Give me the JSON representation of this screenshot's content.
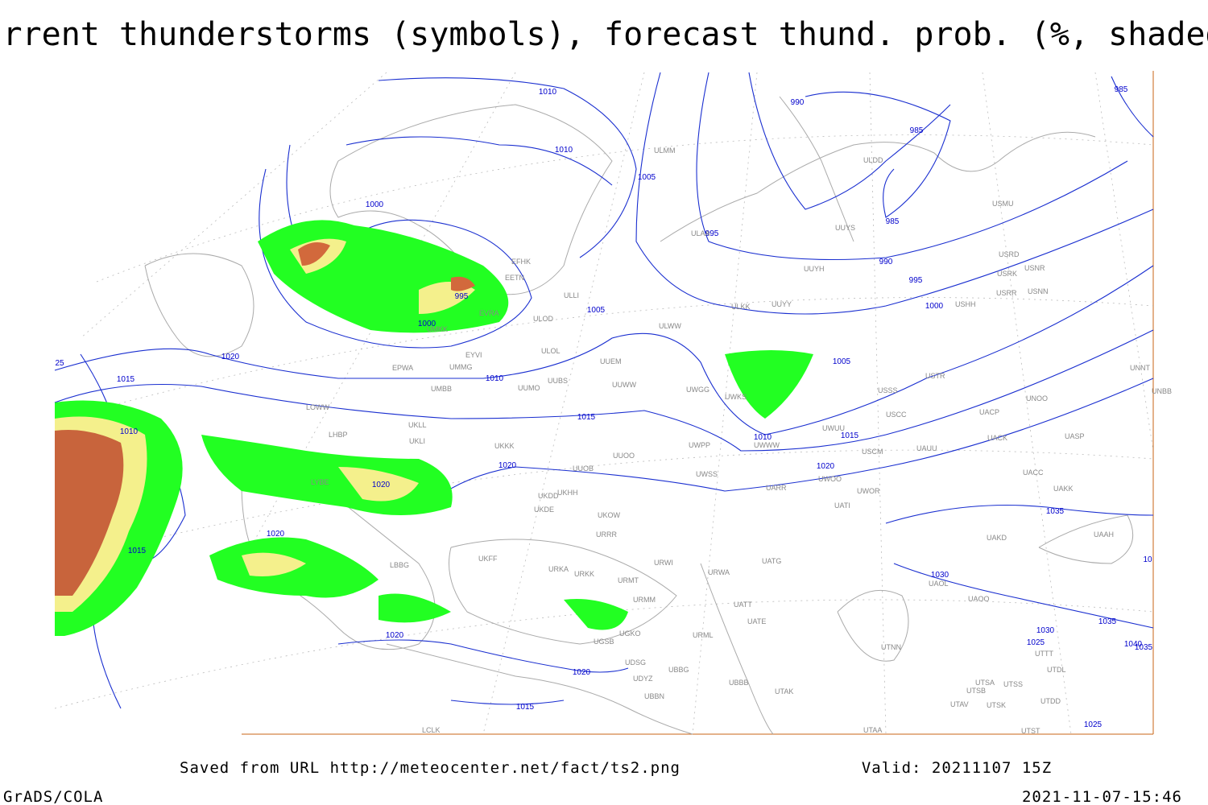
{
  "title": "Current thunderstorms (symbols), forecast thund. prob. (%, shaded)",
  "footer": {
    "saved_from": "Saved from URL http://meteocenter.net/fact/ts2.png",
    "valid": "Valid: 20211107 15Z",
    "credit": "GrADS/COLA",
    "timestamp": "2021-11-07-15:46"
  },
  "isobar_labels": [
    "1010",
    "1010",
    "1005",
    "1000",
    "995",
    "990",
    "985",
    "985",
    "985",
    "990",
    "995",
    "1000",
    "1005",
    "995",
    "1000",
    "1020",
    "1015",
    "1010",
    "1015",
    "1010",
    "1015",
    "1005",
    "1020",
    "1020",
    "1035",
    "1030",
    "1010",
    "1020",
    "1020",
    "1015",
    "1020",
    "1020",
    "1015",
    "1030",
    "1025",
    "1035",
    "1040",
    "1035",
    "1025",
    "25",
    "10"
  ],
  "station_codes": [
    "ULMM",
    "ULDD",
    "USMU",
    "ULAA",
    "UUYS",
    "UUYH",
    "USRD",
    "USRK",
    "USNR",
    "USRR",
    "USNN",
    "USHH",
    "UUYY",
    "ULKK",
    "ULWW",
    "ULOD",
    "ULOL",
    "UUEM",
    "UMMG",
    "EPWA",
    "UMBB",
    "UUBS",
    "UUMO",
    "UUWW",
    "UWGG",
    "UWKS",
    "USSS",
    "USTR",
    "UNOO",
    "UNNT",
    "UNBB",
    "USCC",
    "LOWW",
    "LHBP",
    "UKLL",
    "UKLI",
    "UKKK",
    "UUOO",
    "UWPP",
    "UWWW",
    "UWUU",
    "USCM",
    "UAUU",
    "UACK",
    "UASP",
    "UACP",
    "UWSS",
    "UUOB",
    "UKHH",
    "UKDD",
    "UKDE",
    "UKFF",
    "URKA",
    "URKK",
    "URRR",
    "UKOW",
    "URMT",
    "URWI",
    "URMM",
    "URWA",
    "UATG",
    "UATT",
    "UATE",
    "URML",
    "UTNN",
    "UAOL",
    "UAOO",
    "UAKD",
    "UAAH",
    "UAKK",
    "UACC",
    "UARR",
    "UWOO",
    "UWOR",
    "UATI",
    "UGSB",
    "UGKO",
    "UDSG",
    "UBBG",
    "UDYZ",
    "UBBN",
    "UBBB",
    "UTAK",
    "UTSA",
    "UTSS",
    "UTSB",
    "UTAV",
    "UTSK",
    "UTDD",
    "UTDL",
    "UTTT",
    "UTAA",
    "UTST",
    "LCLK",
    "LBBG",
    "LYBE",
    "EYVI",
    "EFHK",
    "EETN",
    "EVRA",
    "ULLI",
    "UMKK"
  ]
}
